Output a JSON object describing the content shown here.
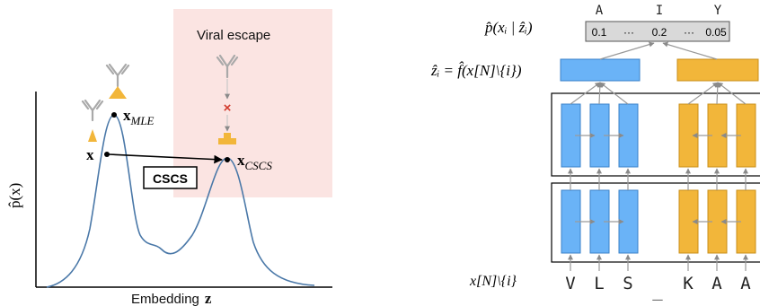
{
  "left_panel": {
    "region_label": "Viral escape",
    "x_axis_label": "Embedding",
    "x_axis_symbol": "z",
    "y_axis_label": "p̂(x)",
    "point_x": "x",
    "point_mle": "x",
    "point_mle_sub": "MLE",
    "point_cscs": "x",
    "point_cscs_sub": "CSCS",
    "method_label": "CSCS",
    "mutation_mark": "×"
  },
  "right_panel": {
    "prob_label": "p̂(xᵢ | ẑᵢ)",
    "z_label": "ẑᵢ = f̂(x[N]\\{i})",
    "input_label": "x[N]\\{i}",
    "output_letters": [
      "A",
      "I",
      "Y"
    ],
    "output_values": [
      "0.1",
      "···",
      "0.2",
      "···",
      "0.05"
    ],
    "input_tokens": [
      "V",
      "L",
      "S",
      "_",
      "K",
      "A",
      "A"
    ]
  },
  "colors": {
    "blue": "#6ab3f7",
    "orange": "#f2b63a",
    "curve": "#4a78a8",
    "region": "#fbe4e2",
    "antibody": "#b0b0b0"
  }
}
